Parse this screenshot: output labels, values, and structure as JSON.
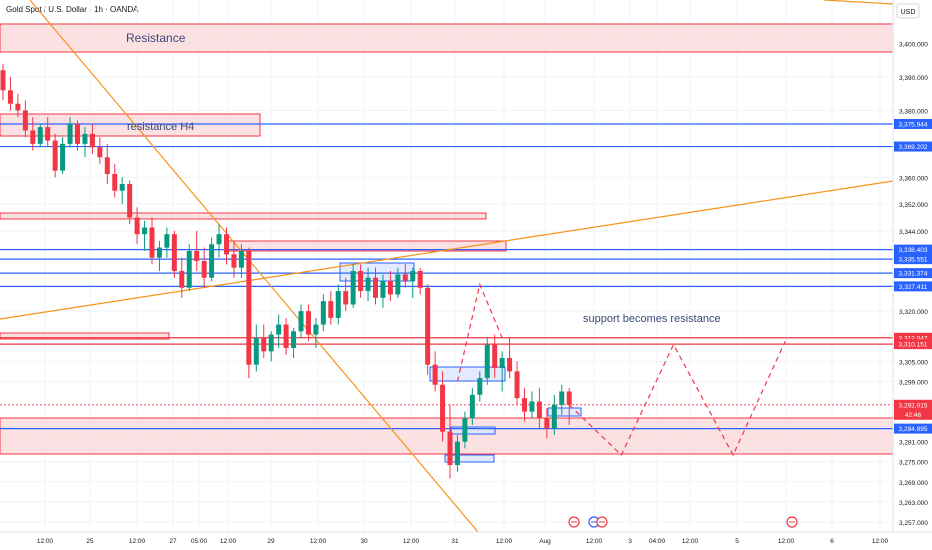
{
  "header": {
    "title": "Gold Spot / U.S. Dollar · 1h · OANDA",
    "currency": "USD"
  },
  "colors": {
    "up": "#089981",
    "down": "#f23645",
    "blue": "#2962ff",
    "red": "#f23645",
    "orange": "#f7931a",
    "zone_fill": "#fbd9dc",
    "blue_fill": "#dbe6ff",
    "grid": "#f0f3fa",
    "text": "#131722"
  },
  "annotations": {
    "resistance": "Resistance",
    "resistance_h4": "resistance H4",
    "support_resistance": "support becomes resistance"
  },
  "chart_data": {
    "type": "candlestick",
    "symbol": "Gold Spot / U.S. Dollar",
    "timeframe": "1h",
    "ylim": [
      3254,
      3413
    ],
    "y_ticks": [
      "3,400.000",
      "3,390.000",
      "3,380.000",
      "3,360.000",
      "3,352.000",
      "3,344.000",
      "3,320.000",
      "3,305.000",
      "3,299.000",
      "3,281.000",
      "3,275.000",
      "3,269.000",
      "3,263.000",
      "3,257.000"
    ],
    "x_ticks": [
      "12:00",
      "25",
      "12:00",
      "27",
      "05:00",
      "12:00",
      "29",
      "12:00",
      "30",
      "12:00",
      "31",
      "12:00",
      "Aug",
      "12:00",
      "3",
      "04:00",
      "12:00",
      "5",
      "12:00",
      "6",
      "12:00"
    ],
    "price_levels": [
      {
        "value": 3375.944,
        "label": "3,375.944",
        "color": "blue"
      },
      {
        "value": 3369.202,
        "label": "3,369.202",
        "color": "blue"
      },
      {
        "value": 3338.403,
        "label": "3,338.403",
        "color": "blue"
      },
      {
        "value": 3335.551,
        "label": "3,335.551",
        "color": "blue"
      },
      {
        "value": 3331.374,
        "label": "3,331.374",
        "color": "blue"
      },
      {
        "value": 3327.411,
        "label": "3,327.411",
        "color": "blue"
      },
      {
        "value": 3312.047,
        "label": "3,312.047",
        "color": "red"
      },
      {
        "value": 3310.151,
        "label": "3,310.151",
        "color": "red"
      },
      {
        "value": 3284.895,
        "label": "3,284.895",
        "color": "blue"
      }
    ],
    "current_price": {
      "value": 3292.015,
      "label": "3,292.015",
      "countdown": "42:46"
    },
    "candles": [
      [
        3392,
        3394,
        3383,
        3386
      ],
      [
        3386,
        3390,
        3380,
        3382
      ],
      [
        3382,
        3385,
        3378,
        3380
      ],
      [
        3380,
        3383,
        3372,
        3374
      ],
      [
        3374,
        3378,
        3368,
        3370
      ],
      [
        3370,
        3376,
        3369,
        3375
      ],
      [
        3375,
        3378,
        3369,
        3371
      ],
      [
        3371,
        3373,
        3360,
        3362
      ],
      [
        3362,
        3372,
        3361,
        3370
      ],
      [
        3370,
        3378,
        3369,
        3376
      ],
      [
        3376,
        3377,
        3368,
        3370
      ],
      [
        3370,
        3375,
        3366,
        3373
      ],
      [
        3373,
        3376,
        3367,
        3369
      ],
      [
        3369,
        3372,
        3364,
        3366
      ],
      [
        3366,
        3370,
        3358,
        3361
      ],
      [
        3361,
        3364,
        3354,
        3356
      ],
      [
        3356,
        3360,
        3352,
        3358
      ],
      [
        3358,
        3359,
        3346,
        3348
      ],
      [
        3348,
        3351,
        3340,
        3343
      ],
      [
        3343,
        3347,
        3338,
        3345
      ],
      [
        3345,
        3348,
        3334,
        3336
      ],
      [
        3336,
        3341,
        3332,
        3339
      ],
      [
        3339,
        3345,
        3336,
        3343
      ],
      [
        3343,
        3344,
        3330,
        3332
      ],
      [
        3332,
        3336,
        3324,
        3327
      ],
      [
        3327,
        3340,
        3326,
        3338
      ],
      [
        3338,
        3344,
        3332,
        3335
      ],
      [
        3335,
        3339,
        3327,
        3330
      ],
      [
        3330,
        3342,
        3329,
        3340
      ],
      [
        3340,
        3346,
        3336,
        3343
      ],
      [
        3343,
        3345,
        3334,
        3337
      ],
      [
        3337,
        3341,
        3330,
        3333
      ],
      [
        3333,
        3340,
        3330,
        3338
      ],
      [
        3338,
        3339,
        3300,
        3304
      ],
      [
        3304,
        3316,
        3302,
        3312
      ],
      [
        3312,
        3316,
        3306,
        3308
      ],
      [
        3308,
        3314,
        3305,
        3313
      ],
      [
        3313,
        3319,
        3309,
        3316
      ],
      [
        3316,
        3318,
        3307,
        3309
      ],
      [
        3309,
        3315,
        3306,
        3314
      ],
      [
        3314,
        3322,
        3312,
        3320
      ],
      [
        3320,
        3322,
        3311,
        3313
      ],
      [
        3313,
        3318,
        3309,
        3316
      ],
      [
        3316,
        3325,
        3314,
        3323
      ],
      [
        3323,
        3326,
        3316,
        3318
      ],
      [
        3318,
        3328,
        3316,
        3326
      ],
      [
        3326,
        3330,
        3320,
        3322
      ],
      [
        3322,
        3334,
        3321,
        3332
      ],
      [
        3332,
        3334,
        3324,
        3326
      ],
      [
        3326,
        3333,
        3323,
        3330
      ],
      [
        3330,
        3333,
        3322,
        3324
      ],
      [
        3324,
        3331,
        3321,
        3329
      ],
      [
        3329,
        3332,
        3323,
        3325
      ],
      [
        3325,
        3333,
        3324,
        3331
      ],
      [
        3331,
        3334,
        3327,
        3329
      ],
      [
        3329,
        3333,
        3324,
        3332
      ],
      [
        3332,
        3333,
        3325,
        3327
      ],
      [
        3327,
        3328,
        3301,
        3304
      ],
      [
        3304,
        3308,
        3296,
        3298
      ],
      [
        3298,
        3302,
        3281,
        3284
      ],
      [
        3284,
        3292,
        3270,
        3274
      ],
      [
        3274,
        3283,
        3272,
        3281
      ],
      [
        3281,
        3290,
        3279,
        3288
      ],
      [
        3288,
        3297,
        3286,
        3295
      ],
      [
        3295,
        3302,
        3293,
        3300
      ],
      [
        3300,
        3312,
        3298,
        3310
      ],
      [
        3310,
        3313,
        3300,
        3303
      ],
      [
        3303,
        3308,
        3296,
        3306
      ],
      [
        3306,
        3312,
        3300,
        3302
      ],
      [
        3302,
        3305,
        3292,
        3294
      ],
      [
        3294,
        3297,
        3287,
        3290
      ],
      [
        3290,
        3296,
        3288,
        3293
      ],
      [
        3293,
        3297,
        3285,
        3288
      ],
      [
        3288,
        3291,
        3282,
        3285
      ],
      [
        3285,
        3295,
        3283,
        3292
      ],
      [
        3292,
        3298,
        3289,
        3296
      ],
      [
        3296,
        3297,
        3286,
        3292
      ]
    ],
    "projection": [
      {
        "t": 76,
        "v": 3292
      },
      {
        "t": 83,
        "v": 3277
      },
      {
        "t": 90,
        "v": 3310
      },
      {
        "t": 98,
        "v": 3277
      },
      {
        "t": 105,
        "v": 3311
      }
    ],
    "projection_top": [
      {
        "t": 61,
        "v": 3299
      },
      {
        "t": 64,
        "v": 3328
      },
      {
        "t": 67,
        "v": 3312
      }
    ]
  }
}
